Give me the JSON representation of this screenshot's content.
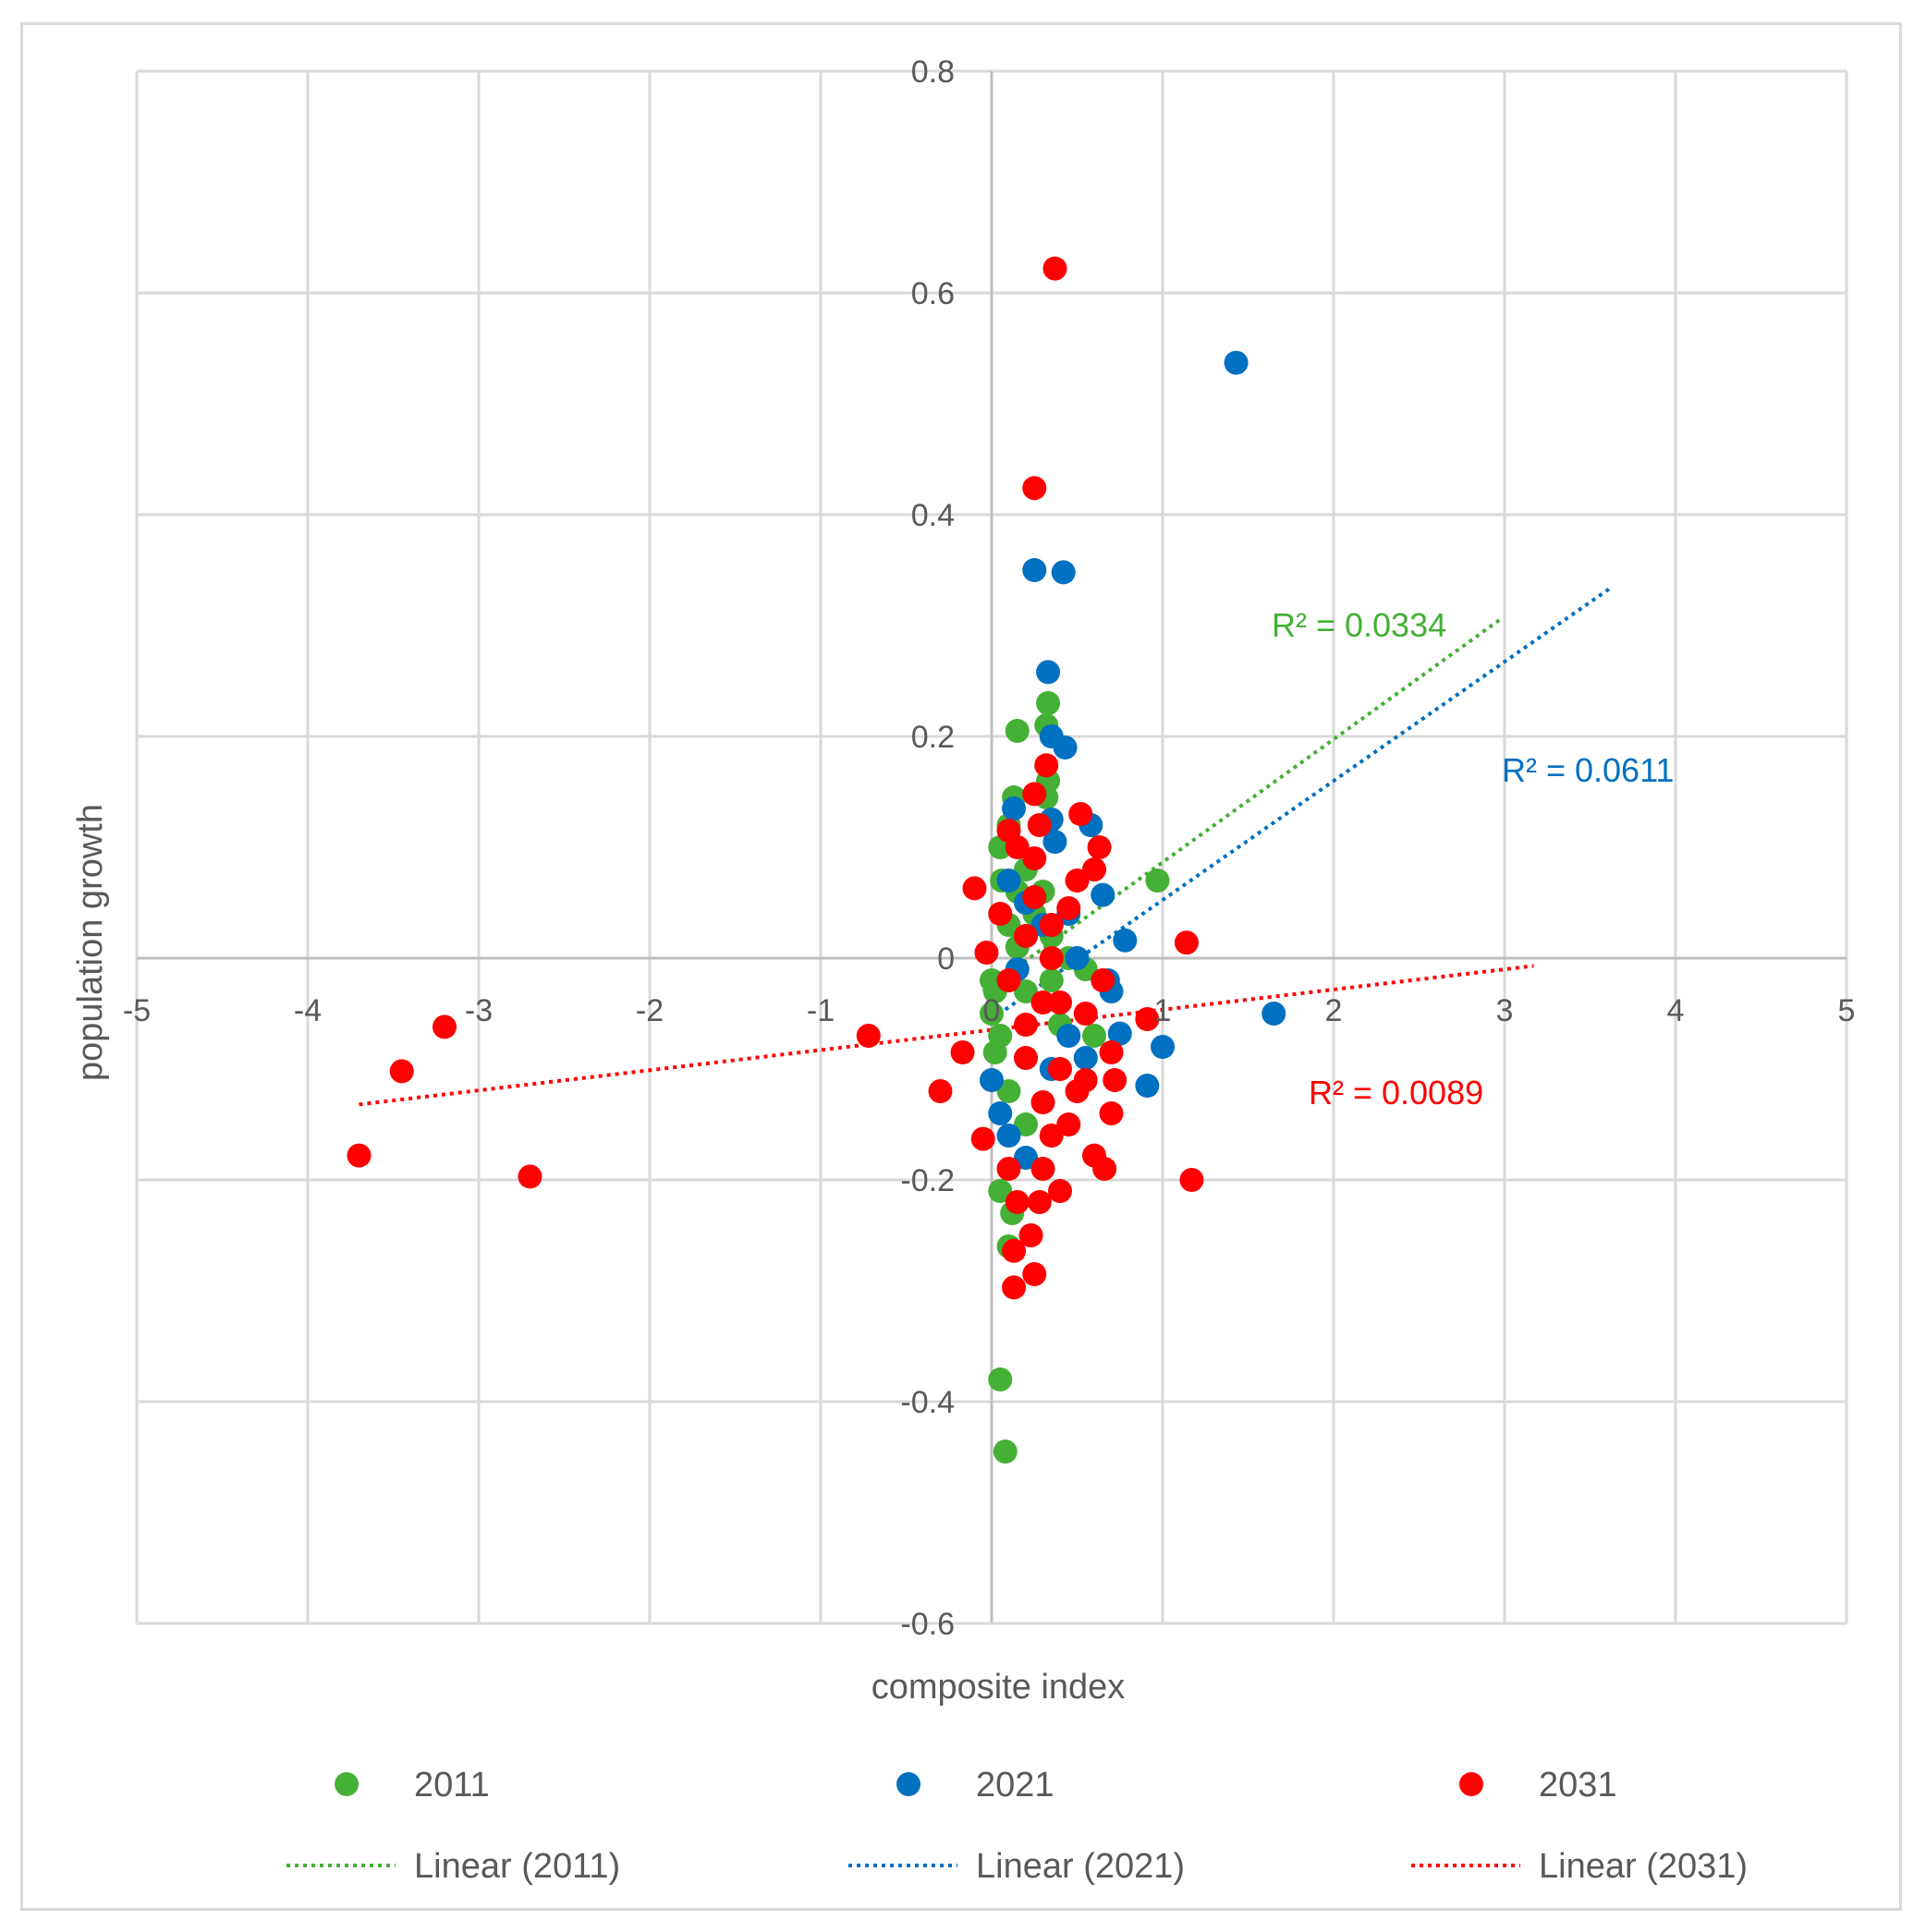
{
  "chart_data": {
    "type": "scatter",
    "title": "",
    "xlabel": "composite index",
    "ylabel": "population growth",
    "xlim": [
      -5,
      5
    ],
    "ylim": [
      -0.6,
      0.8
    ],
    "x_ticks": [
      "-5",
      "-4",
      "-3",
      "-2",
      "-1",
      "0",
      "1",
      "2",
      "3",
      "4",
      "5"
    ],
    "y_ticks": [
      "0.8",
      "0.6",
      "0.4",
      "0.2",
      "0",
      "-0.2",
      "-0.4",
      "-0.6"
    ],
    "grid": true,
    "legend_position": "bottom",
    "series": [
      {
        "name": "2011",
        "color": "#44b035",
        "points": [
          [
            0.15,
            0.205
          ],
          [
            0.33,
            0.23
          ],
          [
            0.32,
            0.21
          ],
          [
            0.33,
            0.16
          ],
          [
            0.13,
            0.145
          ],
          [
            0.32,
            0.145
          ],
          [
            0.05,
            0.1
          ],
          [
            0.1,
            0.12
          ],
          [
            0.2,
            0.08
          ],
          [
            0.06,
            0.07
          ],
          [
            0.15,
            0.06
          ],
          [
            0.97,
            0.07
          ],
          [
            0.3,
            0.06
          ],
          [
            0.25,
            0.04
          ],
          [
            0.1,
            0.03
          ],
          [
            0.35,
            0.02
          ],
          [
            0.15,
            0.01
          ],
          [
            0.45,
            0.0
          ],
          [
            0.55,
            -0.01
          ],
          [
            0.0,
            -0.02
          ],
          [
            0.02,
            -0.03
          ],
          [
            0.2,
            -0.03
          ],
          [
            0.35,
            -0.02
          ],
          [
            0.0,
            -0.05
          ],
          [
            0.05,
            -0.07
          ],
          [
            0.02,
            -0.085
          ],
          [
            0.4,
            -0.06
          ],
          [
            0.6,
            -0.07
          ],
          [
            0.1,
            -0.12
          ],
          [
            0.2,
            -0.15
          ],
          [
            0.05,
            -0.21
          ],
          [
            0.12,
            -0.23
          ],
          [
            0.1,
            -0.26
          ],
          [
            0.05,
            -0.38
          ],
          [
            0.08,
            -0.445
          ]
        ],
        "trendline": {
          "label": "Linear (2011)",
          "r2_label": "R² = 0.0334",
          "x_start": -0.05,
          "y_start": -0.03,
          "x_end": 2.97,
          "y_end": 0.305
        }
      },
      {
        "name": "2021",
        "color": "#0070c0",
        "points": [
          [
            1.43,
            0.537
          ],
          [
            0.25,
            0.35
          ],
          [
            0.42,
            0.348
          ],
          [
            0.33,
            0.258
          ],
          [
            0.35,
            0.2
          ],
          [
            0.43,
            0.19
          ],
          [
            0.13,
            0.135
          ],
          [
            0.35,
            0.125
          ],
          [
            0.58,
            0.12
          ],
          [
            0.37,
            0.105
          ],
          [
            0.1,
            0.07
          ],
          [
            0.65,
            0.057
          ],
          [
            0.2,
            0.05
          ],
          [
            0.45,
            0.04
          ],
          [
            0.78,
            0.016
          ],
          [
            0.3,
            0.03
          ],
          [
            0.5,
            0.0
          ],
          [
            0.68,
            -0.02
          ],
          [
            0.7,
            -0.03
          ],
          [
            0.15,
            -0.01
          ],
          [
            1.65,
            -0.05
          ],
          [
            0.75,
            -0.068
          ],
          [
            1.0,
            -0.08
          ],
          [
            0.55,
            -0.09
          ],
          [
            0.0,
            -0.11
          ],
          [
            0.91,
            -0.115
          ],
          [
            0.05,
            -0.14
          ],
          [
            0.1,
            -0.16
          ],
          [
            0.2,
            -0.18
          ],
          [
            0.35,
            -0.1
          ],
          [
            0.45,
            -0.07
          ]
        ],
        "trendline": {
          "label": "Linear (2021)",
          "r2_label": "R² = 0.0611",
          "x_start": 0.0,
          "y_start": -0.055,
          "x_end": 3.63,
          "y_end": 0.335
        }
      },
      {
        "name": "2031",
        "color": "#ff0000",
        "points": [
          [
            0.37,
            0.622
          ],
          [
            0.25,
            0.424
          ],
          [
            0.32,
            0.174
          ],
          [
            0.25,
            0.148
          ],
          [
            0.28,
            0.12
          ],
          [
            0.52,
            0.13
          ],
          [
            0.1,
            0.115
          ],
          [
            0.15,
            0.1
          ],
          [
            0.25,
            0.09
          ],
          [
            0.63,
            0.1
          ],
          [
            0.6,
            0.08
          ],
          [
            -0.1,
            0.063
          ],
          [
            0.5,
            0.07
          ],
          [
            0.25,
            0.055
          ],
          [
            0.45,
            0.045
          ],
          [
            0.05,
            0.04
          ],
          [
            0.35,
            0.03
          ],
          [
            0.2,
            0.02
          ],
          [
            0.35,
            0.0
          ],
          [
            -0.03,
            0.005
          ],
          [
            1.14,
            0.014
          ],
          [
            0.1,
            -0.02
          ],
          [
            0.3,
            -0.04
          ],
          [
            0.91,
            -0.055
          ],
          [
            0.55,
            -0.05
          ],
          [
            0.65,
            -0.02
          ],
          [
            -0.72,
            -0.07
          ],
          [
            -3.2,
            -0.062
          ],
          [
            -3.45,
            -0.102
          ],
          [
            -0.17,
            -0.085
          ],
          [
            0.7,
            -0.085
          ],
          [
            0.2,
            -0.09
          ],
          [
            0.4,
            -0.1
          ],
          [
            0.55,
            -0.11
          ],
          [
            0.72,
            -0.11
          ],
          [
            -0.3,
            -0.12
          ],
          [
            0.3,
            -0.13
          ],
          [
            0.45,
            -0.15
          ],
          [
            0.7,
            -0.14
          ],
          [
            -0.05,
            -0.163
          ],
          [
            -3.7,
            -0.178
          ],
          [
            -2.7,
            -0.197
          ],
          [
            0.6,
            -0.178
          ],
          [
            0.66,
            -0.19
          ],
          [
            1.17,
            -0.2
          ],
          [
            0.1,
            -0.19
          ],
          [
            0.3,
            -0.19
          ],
          [
            0.4,
            -0.21
          ],
          [
            0.15,
            -0.22
          ],
          [
            0.28,
            -0.22
          ],
          [
            0.23,
            -0.25
          ],
          [
            0.13,
            -0.264
          ],
          [
            0.25,
            -0.285
          ],
          [
            0.13,
            -0.297
          ],
          [
            0.35,
            -0.16
          ],
          [
            0.5,
            -0.12
          ],
          [
            0.2,
            -0.06
          ],
          [
            0.4,
            -0.04
          ]
        ],
        "trendline": {
          "label": "Linear (2031)",
          "r2_label": "R² = 0.0089",
          "x_start": -3.7,
          "y_start": -0.132,
          "x_end": 3.17,
          "y_end": -0.007
        }
      }
    ]
  }
}
